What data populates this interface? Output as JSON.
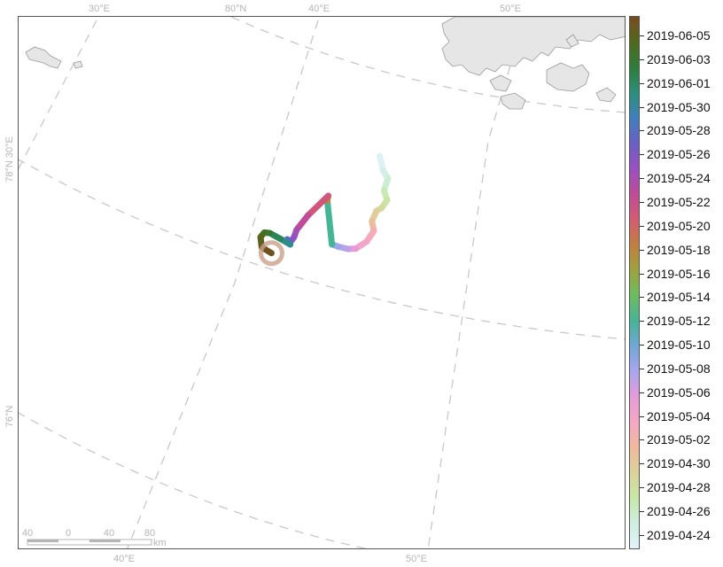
{
  "map": {
    "graticule_labels": {
      "top": [
        "30°E",
        "80°N",
        "40°E",
        "50°E"
      ],
      "left": [
        "78°N 30°E",
        "76°N"
      ],
      "bottom": [
        "40°E",
        "50°E"
      ]
    },
    "scale_bar": {
      "ticks": [
        "40",
        "0",
        "40",
        "80"
      ],
      "unit": "km"
    },
    "colors": {
      "land_fill": "#e6e6e6",
      "land_stroke": "#9a9a9a",
      "graticule": "#c8c8c8",
      "start_marker": "#c9a08a"
    }
  },
  "colorbar": {
    "labels": [
      "2019-06-05",
      "2019-06-03",
      "2019-06-01",
      "2019-05-30",
      "2019-05-28",
      "2019-05-26",
      "2019-05-24",
      "2019-05-22",
      "2019-05-20",
      "2019-05-18",
      "2019-05-16",
      "2019-05-14",
      "2019-05-12",
      "2019-05-10",
      "2019-05-08",
      "2019-05-06",
      "2019-05-04",
      "2019-05-02",
      "2019-04-30",
      "2019-04-28",
      "2019-04-26",
      "2019-04-24"
    ],
    "gradient": [
      "#7b4a1e",
      "#4f6a1c",
      "#2e7d3a",
      "#28907a",
      "#3f7fbf",
      "#6a5fc6",
      "#9b4fc2",
      "#c04b98",
      "#d65a72",
      "#c27e3e",
      "#9fa23c",
      "#6bbd5e",
      "#45b596",
      "#6fa7d8",
      "#a9a6ee",
      "#e69ad9",
      "#f6a7c3",
      "#f1b89c",
      "#dcd29a",
      "#c6e8a6",
      "#cdeee0",
      "#e4f2fb"
    ]
  },
  "chart_data": {
    "type": "map-track",
    "series": [
      {
        "points": [
          {
            "date": "2019-04-24",
            "lat": 78.75,
            "lon": 48.6
          },
          {
            "date": "2019-04-25",
            "lat": 78.45,
            "lon": 48.8
          },
          {
            "date": "2019-04-26",
            "lat": 78.28,
            "lon": 49.2
          },
          {
            "date": "2019-04-27",
            "lat": 78.05,
            "lon": 48.7
          },
          {
            "date": "2019-04-28",
            "lat": 77.85,
            "lon": 48.9
          },
          {
            "date": "2019-04-29",
            "lat": 77.7,
            "lon": 48.3
          },
          {
            "date": "2019-04-30",
            "lat": 77.65,
            "lon": 47.8
          },
          {
            "date": "2019-05-01",
            "lat": 77.45,
            "lon": 47.3
          },
          {
            "date": "2019-05-02",
            "lat": 77.3,
            "lon": 47.4
          },
          {
            "date": "2019-05-03",
            "lat": 77.25,
            "lon": 47.4
          },
          {
            "date": "2019-05-04",
            "lat": 77.05,
            "lon": 46.7
          },
          {
            "date": "2019-05-05",
            "lat": 76.92,
            "lon": 45.7
          },
          {
            "date": "2019-05-07",
            "lat": 76.92,
            "lon": 45.0
          },
          {
            "date": "2019-05-08",
            "lat": 76.97,
            "lon": 44.2
          },
          {
            "date": "2019-05-09",
            "lat": 77.02,
            "lon": 43.6
          },
          {
            "date": "2019-05-15",
            "lat": 77.9,
            "lon": 43.2
          },
          {
            "date": "2019-05-20",
            "lat": 78.0,
            "lon": 43.3
          },
          {
            "date": "2019-05-21",
            "lat": 77.6,
            "lon": 41.4
          },
          {
            "date": "2019-05-23",
            "lat": 77.3,
            "lon": 40.4
          },
          {
            "date": "2019-05-24",
            "lat": 77.15,
            "lon": 40.2
          },
          {
            "date": "2019-05-25",
            "lat": 77.05,
            "lon": 39.9
          },
          {
            "date": "2019-05-26",
            "lat": 77.1,
            "lon": 39.6
          },
          {
            "date": "2019-05-27",
            "lat": 77.05,
            "lon": 39.5
          },
          {
            "date": "2019-05-29",
            "lat": 77.0,
            "lon": 39.9
          },
          {
            "date": "2019-05-30",
            "lat": 77.1,
            "lon": 39.0
          },
          {
            "date": "2019-06-01",
            "lat": 77.2,
            "lon": 38.0
          },
          {
            "date": "2019-06-02",
            "lat": 77.2,
            "lon": 37.5
          },
          {
            "date": "2019-06-03",
            "lat": 77.1,
            "lon": 37.2
          },
          {
            "date": "2019-06-04",
            "lat": 76.9,
            "lon": 37.4
          },
          {
            "date": "2019-06-05",
            "lat": 76.8,
            "lon": 38.3
          }
        ]
      }
    ],
    "date_range": [
      "2019-04-24",
      "2019-06-05"
    ],
    "projection": "polar-stereographic"
  }
}
